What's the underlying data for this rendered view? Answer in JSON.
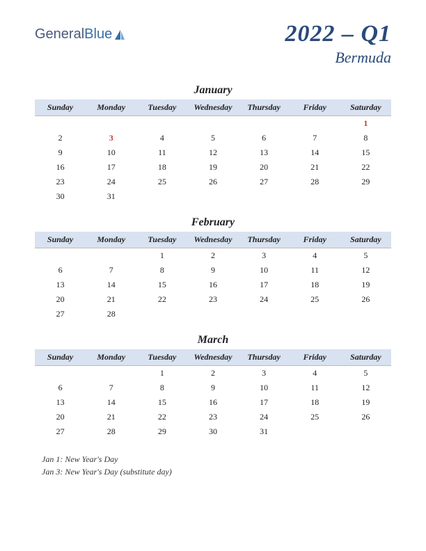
{
  "logo": {
    "part1": "General",
    "part2": "Blue"
  },
  "title": {
    "main": "2022 – Q1",
    "sub": "Bermuda"
  },
  "colors": {
    "header_bg": "#d9e2f0",
    "title_color": "#2a4a7a",
    "holiday_color": "#c0392b",
    "text_color": "#222222",
    "logo_general": "#4a5a7a",
    "logo_blue": "#3a6ea5"
  },
  "day_headers": [
    "Sunday",
    "Monday",
    "Tuesday",
    "Wednesday",
    "Thursday",
    "Friday",
    "Saturday"
  ],
  "months": [
    {
      "name": "January",
      "weeks": [
        [
          "",
          "",
          "",
          "",
          "",
          "",
          "1"
        ],
        [
          "2",
          "3",
          "4",
          "5",
          "6",
          "7",
          "8"
        ],
        [
          "9",
          "10",
          "11",
          "12",
          "13",
          "14",
          "15"
        ],
        [
          "16",
          "17",
          "18",
          "19",
          "20",
          "21",
          "22"
        ],
        [
          "23",
          "24",
          "25",
          "26",
          "27",
          "28",
          "29"
        ],
        [
          "30",
          "31",
          "",
          "",
          "",
          "",
          ""
        ]
      ],
      "holidays": [
        "1",
        "3"
      ]
    },
    {
      "name": "February",
      "weeks": [
        [
          "",
          "",
          "1",
          "2",
          "3",
          "4",
          "5"
        ],
        [
          "6",
          "7",
          "8",
          "9",
          "10",
          "11",
          "12"
        ],
        [
          "13",
          "14",
          "15",
          "16",
          "17",
          "18",
          "19"
        ],
        [
          "20",
          "21",
          "22",
          "23",
          "24",
          "25",
          "26"
        ],
        [
          "27",
          "28",
          "",
          "",
          "",
          "",
          ""
        ]
      ],
      "holidays": []
    },
    {
      "name": "March",
      "weeks": [
        [
          "",
          "",
          "1",
          "2",
          "3",
          "4",
          "5"
        ],
        [
          "6",
          "7",
          "8",
          "9",
          "10",
          "11",
          "12"
        ],
        [
          "13",
          "14",
          "15",
          "16",
          "17",
          "18",
          "19"
        ],
        [
          "20",
          "21",
          "22",
          "23",
          "24",
          "25",
          "26"
        ],
        [
          "27",
          "28",
          "29",
          "30",
          "31",
          "",
          ""
        ]
      ],
      "holidays": []
    }
  ],
  "notes": [
    "Jan 1: New Year's Day",
    "Jan 3: New Year's Day (substitute day)"
  ]
}
